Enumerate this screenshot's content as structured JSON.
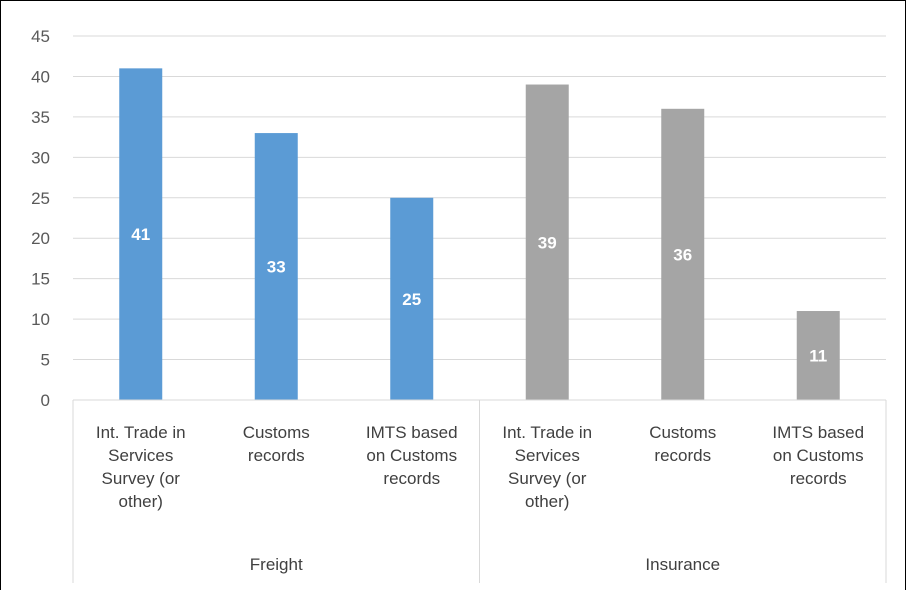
{
  "chart_data": {
    "type": "bar",
    "title": "",
    "xlabel": "",
    "ylabel": "",
    "ylim": [
      0,
      45
    ],
    "yticks": [
      0,
      5,
      10,
      15,
      20,
      25,
      30,
      35,
      40,
      45
    ],
    "grid": true,
    "legend": "none",
    "groups": [
      {
        "name": "Freight",
        "color": "#5b9bd5",
        "categories": [
          "Int. Trade in Services Survey (or other)",
          "Customs records",
          "IMTS based on Customs records"
        ],
        "category_lines": [
          [
            "Int. Trade in",
            "Services",
            "Survey (or",
            "other)"
          ],
          [
            "Customs",
            "records"
          ],
          [
            "IMTS based",
            "on Customs",
            "records"
          ]
        ],
        "values": [
          41,
          33,
          25
        ]
      },
      {
        "name": "Insurance",
        "color": "#a5a5a5",
        "categories": [
          "Int. Trade in Services Survey (or other)",
          "Customs records",
          "IMTS based on Customs records"
        ],
        "category_lines": [
          [
            "Int. Trade in",
            "Services",
            "Survey (or",
            "other)"
          ],
          [
            "Customs",
            "records"
          ],
          [
            "IMTS based",
            "on Customs",
            "records"
          ]
        ],
        "values": [
          39,
          36,
          11
        ]
      }
    ]
  }
}
